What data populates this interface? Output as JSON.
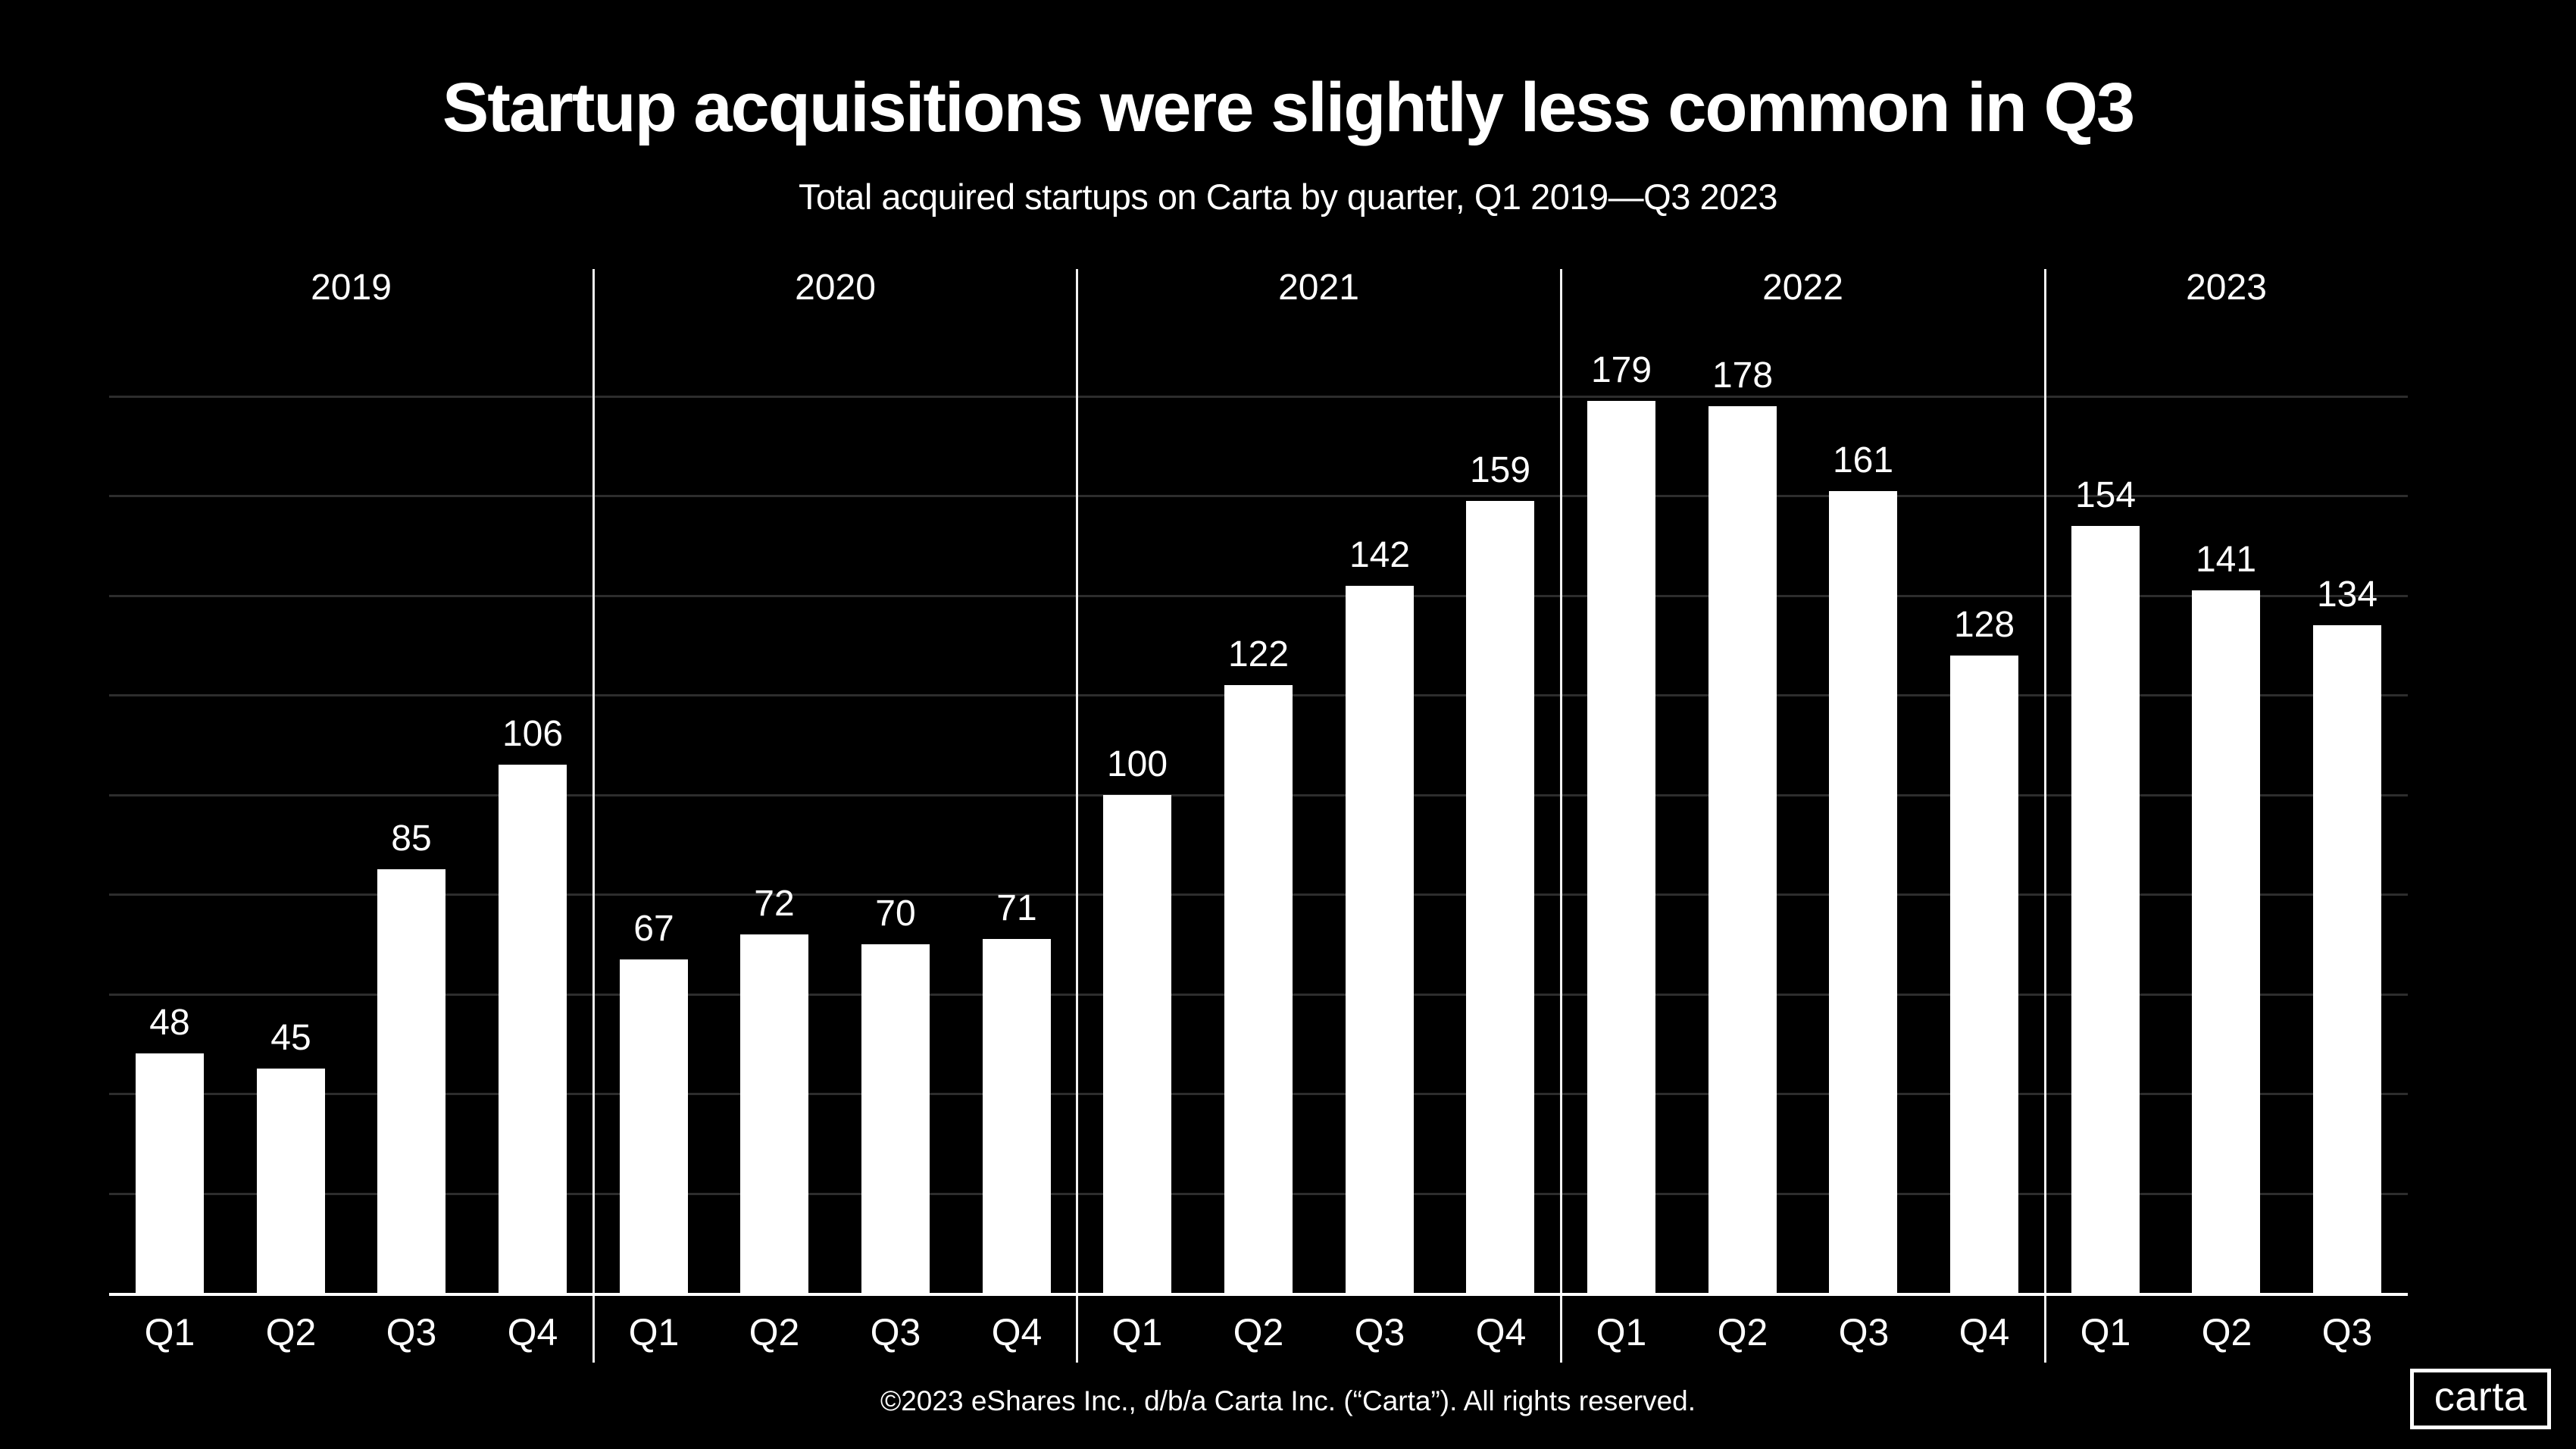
{
  "page": {
    "title": "Startup acquisitions were slightly less common in Q3",
    "subtitle": "Total acquired startups on Carta by quarter, Q1 2019—Q3 2023",
    "footer": "©2023 eShares Inc., d/b/a Carta Inc. (“Carta”). All rights reserved.",
    "logo_text": "carta"
  },
  "colors": {
    "background": "#000000",
    "bar": "#ffffff",
    "gridline": "#2d2d2d",
    "year_separator": "#f2f2f2",
    "axis": "#ffffff",
    "text": "#ffffff"
  },
  "chart_data": {
    "type": "bar",
    "title": "Startup acquisitions were slightly less common in Q3",
    "subtitle": "Total acquired startups on Carta by quarter, Q1 2019—Q3 2023",
    "xlabel": "",
    "ylabel": "",
    "ylim": [
      0,
      190
    ],
    "grid": true,
    "legend": false,
    "gridline_values": [
      20,
      40,
      60,
      80,
      100,
      120,
      140,
      160,
      180
    ],
    "bar_value_labels_shown": true,
    "groups": [
      {
        "year": "2019",
        "categories": [
          "Q1",
          "Q2",
          "Q3",
          "Q4"
        ],
        "values": [
          48,
          45,
          85,
          106
        ]
      },
      {
        "year": "2020",
        "categories": [
          "Q1",
          "Q2",
          "Q3",
          "Q4"
        ],
        "values": [
          67,
          72,
          70,
          71
        ]
      },
      {
        "year": "2021",
        "categories": [
          "Q1",
          "Q2",
          "Q3",
          "Q4"
        ],
        "values": [
          100,
          122,
          142,
          159
        ]
      },
      {
        "year": "2022",
        "categories": [
          "Q1",
          "Q2",
          "Q3",
          "Q4"
        ],
        "values": [
          179,
          178,
          161,
          128
        ]
      },
      {
        "year": "2023",
        "categories": [
          "Q1",
          "Q2",
          "Q3"
        ],
        "values": [
          154,
          141,
          134
        ]
      }
    ]
  }
}
